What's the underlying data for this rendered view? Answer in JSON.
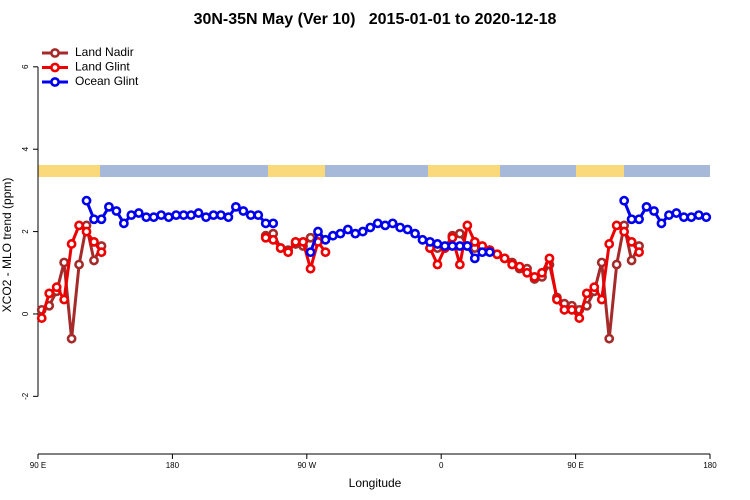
{
  "chart_data": {
    "type": "line",
    "title": "30N-35N May (Ver 10)   2015-01-01 to 2020-12-18",
    "x_label": "Longitude",
    "y_label": "XCO2 - MLO trend (ppm)",
    "x": [
      92.5,
      97.5,
      102.5,
      107.5,
      112.5,
      117.5,
      122.5,
      127.5,
      132.5,
      137.5,
      142.5,
      147.5,
      152.5,
      157.5,
      162.5,
      167.5,
      172.5,
      177.5,
      182.5,
      187.5,
      192.5,
      197.5,
      202.5,
      207.5,
      212.5,
      217.5,
      222.5,
      227.5,
      232.5,
      237.5,
      242.5,
      247.5,
      252.5,
      257.5,
      262.5,
      267.5,
      272.5,
      277.5,
      282.5,
      287.5,
      292.5,
      297.5,
      302.5,
      307.5,
      312.5,
      317.5,
      322.5,
      327.5,
      332.5,
      337.5,
      342.5,
      347.5,
      352.5,
      357.5,
      362.5,
      367.5,
      372.5,
      377.5,
      382.5,
      387.5,
      392.5,
      397.5,
      402.5,
      407.5,
      412.5,
      417.5,
      422.5,
      427.5,
      432.5,
      437.5,
      442.5,
      447.5,
      452.5,
      457.5,
      462.5,
      467.5,
      472.5,
      477.5,
      482.5,
      487.5,
      492.5,
      497.5,
      502.5,
      507.5,
      512.5,
      517.5,
      522.5,
      527.5,
      532.5,
      537.5
    ],
    "series": [
      {
        "name": "Land Nadir",
        "color": "#a52a2a",
        "values": [
          0.1,
          0.2,
          0.55,
          1.25,
          -0.6,
          1.2,
          2.15,
          1.3,
          1.65,
          null,
          null,
          null,
          null,
          null,
          null,
          null,
          null,
          null,
          null,
          null,
          null,
          null,
          null,
          null,
          null,
          null,
          null,
          null,
          null,
          null,
          1.9,
          1.95,
          1.6,
          1.55,
          1.7,
          1.65,
          1.85,
          1.9,
          null,
          null,
          null,
          null,
          null,
          null,
          null,
          null,
          null,
          null,
          null,
          null,
          null,
          null,
          1.6,
          1.6,
          1.6,
          1.9,
          1.95,
          1.65,
          1.6,
          1.55,
          1.55,
          1.45,
          1.35,
          1.25,
          1.1,
          1.1,
          0.85,
          0.9,
          1.2,
          0.4,
          0.25,
          0.2,
          0.1,
          0.2,
          0.55,
          1.25,
          -0.6,
          1.2,
          2.15,
          1.3,
          1.65,
          null,
          null,
          null,
          null,
          null,
          null,
          null,
          null,
          null
        ]
      },
      {
        "name": "Land Glint",
        "color": "#ee0000",
        "values": [
          -0.1,
          0.5,
          0.65,
          0.35,
          1.7,
          2.15,
          2.0,
          1.75,
          1.5,
          null,
          null,
          null,
          null,
          null,
          null,
          null,
          null,
          null,
          null,
          null,
          null,
          null,
          null,
          null,
          null,
          null,
          null,
          null,
          null,
          null,
          1.85,
          1.8,
          1.6,
          1.5,
          1.75,
          1.75,
          1.1,
          1.75,
          1.5,
          null,
          null,
          null,
          null,
          null,
          null,
          null,
          null,
          null,
          null,
          null,
          null,
          null,
          1.6,
          1.2,
          1.6,
          1.85,
          1.2,
          2.15,
          1.75,
          1.65,
          1.55,
          1.45,
          1.35,
          1.2,
          1.15,
          1.0,
          0.9,
          1.0,
          1.35,
          0.35,
          0.1,
          0.1,
          -0.1,
          0.5,
          0.65,
          0.35,
          1.7,
          2.15,
          2.0,
          1.75,
          1.5,
          null,
          null,
          null,
          null,
          null,
          null,
          null,
          null,
          null
        ]
      },
      {
        "name": "Ocean Glint",
        "color": "#0000ee",
        "values": [
          null,
          null,
          null,
          null,
          null,
          null,
          2.75,
          2.3,
          2.3,
          2.6,
          2.5,
          2.2,
          2.4,
          2.45,
          2.35,
          2.35,
          2.4,
          2.35,
          2.4,
          2.4,
          2.4,
          2.45,
          2.35,
          2.4,
          2.4,
          2.35,
          2.6,
          2.5,
          2.4,
          2.4,
          2.2,
          2.2,
          null,
          null,
          null,
          null,
          1.5,
          2.0,
          1.8,
          1.9,
          1.95,
          2.05,
          1.95,
          2.0,
          2.1,
          2.2,
          2.15,
          2.2,
          2.1,
          2.05,
          1.95,
          1.8,
          1.75,
          1.7,
          1.65,
          1.65,
          1.65,
          1.65,
          1.35,
          1.5,
          1.5,
          null,
          null,
          null,
          null,
          null,
          null,
          null,
          null,
          null,
          null,
          null,
          null,
          null,
          null,
          null,
          null,
          null,
          2.75,
          2.3,
          2.3,
          2.6,
          2.5,
          2.2,
          2.4,
          2.45,
          2.35,
          2.35,
          2.4,
          2.35
        ]
      }
    ],
    "xlim": [
      90,
      540
    ],
    "xticks": [
      {
        "value": 90,
        "label": "90 E"
      },
      180,
      {
        "value": 270,
        "label": "90 W"
      },
      {
        "value": 360,
        "label": "0"
      },
      {
        "value": 450,
        "label": "90 E"
      },
      {
        "value": 540,
        "label": "180"
      }
    ],
    "ylim": [
      -3.4,
      6.7
    ],
    "yticks": [
      -2,
      0,
      2,
      4,
      6
    ],
    "legend": "upper left"
  }
}
